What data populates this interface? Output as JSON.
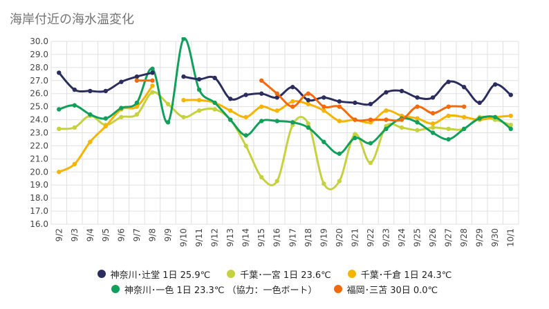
{
  "chart_data": {
    "type": "line",
    "title": "海岸付近の海水温変化",
    "categories": [
      "9/2",
      "9/3",
      "9/4",
      "9/5",
      "9/6",
      "9/7",
      "9/8",
      "9/9",
      "9/10",
      "9/11",
      "9/12",
      "9/13",
      "9/14",
      "9/15",
      "9/16",
      "9/17",
      "9/18",
      "9/19",
      "9/20",
      "9/21",
      "9/22",
      "9/23",
      "9/24",
      "9/25",
      "9/26",
      "9/27",
      "9/28",
      "9/29",
      "9/30",
      "10/1"
    ],
    "y_ticks": [
      "30.0",
      "29.0",
      "28.0",
      "27.0",
      "26.0",
      "25.0",
      "24.0",
      "23.0",
      "22.0",
      "21.0",
      "20.0",
      "19.0",
      "18.0",
      "17.0",
      "16.0"
    ],
    "ylim": [
      16,
      30
    ],
    "grid": true,
    "legend_position": "bottom",
    "series": [
      {
        "name": "神奈川･辻堂 1日 25.9℃",
        "color": "#2b2d5e",
        "values": [
          27.6,
          26.3,
          26.2,
          26.2,
          26.9,
          27.3,
          27.6,
          null,
          27.3,
          27.1,
          27.2,
          25.6,
          25.9,
          26.0,
          25.7,
          26.5,
          25.5,
          25.7,
          25.4,
          25.3,
          25.2,
          26.1,
          26.2,
          25.7,
          25.7,
          26.9,
          26.5,
          25.3,
          26.7,
          25.9
        ]
      },
      {
        "name": "千葉･一宮 1日 23.6℃",
        "color": "#c5d13f",
        "values": [
          23.3,
          23.4,
          24.3,
          23.6,
          24.2,
          24.4,
          26.1,
          25.2,
          24.2,
          24.7,
          24.8,
          24.0,
          22.0,
          19.6,
          19.3,
          23.6,
          23.7,
          19.1,
          19.3,
          22.9,
          20.7,
          23.5,
          23.4,
          23.2,
          23.4,
          23.3,
          23.3,
          24.2,
          24.0,
          23.6
        ]
      },
      {
        "name": "千葉･千倉 1日 24.3℃",
        "color": "#f4b400",
        "values": [
          20.0,
          20.6,
          22.3,
          23.5,
          24.8,
          25.0,
          26.6,
          null,
          25.5,
          25.5,
          25.3,
          24.7,
          24.2,
          25.0,
          24.7,
          25.4,
          25.2,
          24.7,
          23.9,
          24.0,
          23.8,
          24.7,
          24.3,
          24.1,
          23.7,
          24.3,
          24.2,
          24.0,
          24.2,
          24.3
        ]
      },
      {
        "name": "神奈川･一色 1日 23.3℃ （協力：一色ボート）",
        "color": "#129e5b",
        "values": [
          24.8,
          25.1,
          24.4,
          24.1,
          24.9,
          25.3,
          27.9,
          23.8,
          30.2,
          26.3,
          25.3,
          24.0,
          22.8,
          23.9,
          23.9,
          23.8,
          23.4,
          22.3,
          21.4,
          22.6,
          22.2,
          23.3,
          24.1,
          23.8,
          23.0,
          22.5,
          23.3,
          24.1,
          24.2,
          23.3
        ]
      },
      {
        "name": "福岡･三苫 30日 0.0℃",
        "color": "#f26a0c",
        "values": [
          null,
          null,
          null,
          null,
          null,
          27.0,
          27.0,
          null,
          null,
          null,
          null,
          null,
          null,
          27.0,
          26.0,
          25.0,
          26.0,
          25.0,
          25.0,
          24.0,
          24.0,
          24.0,
          24.0,
          25.0,
          24.5,
          25.0,
          25.0,
          null,
          null,
          null
        ]
      }
    ]
  }
}
